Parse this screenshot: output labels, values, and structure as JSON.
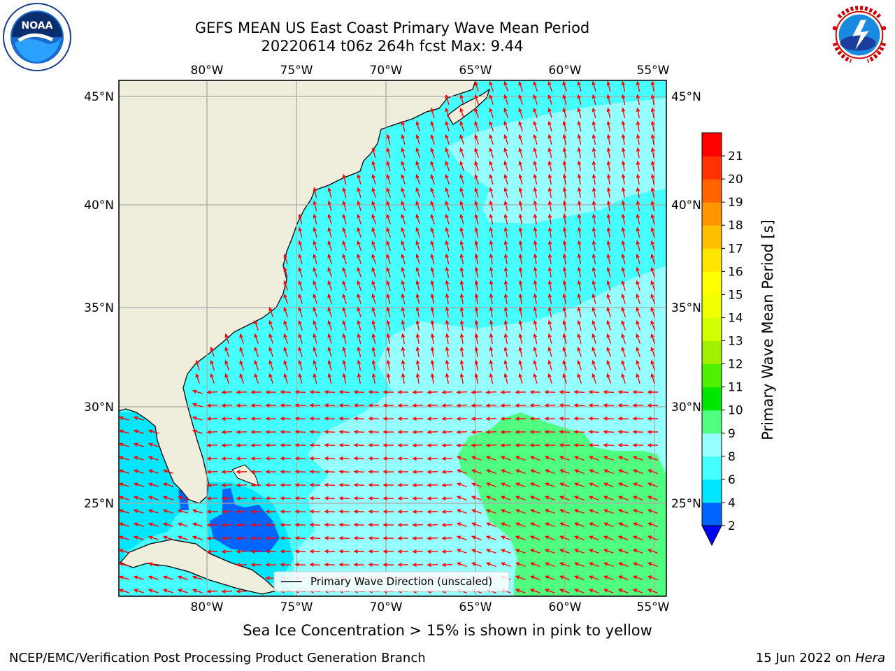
{
  "title_line1": "GEFS MEAN US East Coast Primary Wave Mean Period",
  "title_line2": "20220614 t06z 264h fcst   Max: 9.44",
  "logos": {
    "left": {
      "name": "NOAA",
      "text": "NOAA",
      "ring_text": "NATIONAL OCEANIC AND ATMOSPHERIC ADMINISTRATION · U.S. DEPARTMENT OF COMMERCE"
    },
    "right": {
      "name": "National Weather Service",
      "ring_text": "NATIONAL WEATHER SERVICE"
    }
  },
  "map": {
    "lon_labels": [
      "80°W",
      "75°W",
      "70°W",
      "65°W",
      "60°W",
      "55°W"
    ],
    "lat_labels": [
      "45°N",
      "40°N",
      "35°N",
      "30°N",
      "25°N"
    ],
    "legend_label": "Primary Wave Direction (unscaled)"
  },
  "colorbar": {
    "label": "Primary Wave Mean Period [s]",
    "ticks": [
      "2",
      "4",
      "6",
      "8",
      "9",
      "10",
      "11",
      "12",
      "13",
      "14",
      "15",
      "16",
      "17",
      "18",
      "19",
      "20",
      "21"
    ],
    "colors": [
      "#0064ff",
      "#00e6ff",
      "#46ffff",
      "#96ffff",
      "#50ff82",
      "#00e600",
      "#50f000",
      "#a0f000",
      "#d2ff00",
      "#f0ff00",
      "#ffff00",
      "#ffe600",
      "#ffbe00",
      "#ff9600",
      "#ff6400",
      "#ff3200",
      "#ff0000"
    ],
    "extend_color": "#0000ff"
  },
  "colors": {
    "land": "#efeddc",
    "coast": "#000000",
    "grid": "#a9a9a9",
    "arrow": "#ff0000",
    "wave_4_6": "#00e6ff",
    "wave_6_8": "#46ffff",
    "wave_8_9": "#96ffff",
    "wave_9_10": "#50ff82",
    "wave_2_4": "#0064ff"
  },
  "sea_ice_note": "Sea Ice Concentration > 15% is shown in pink to yellow",
  "footer_left": "NCEP/EMC/Verification Post Processing Product Generation Branch",
  "footer_right_date": "15 Jun 2022 on ",
  "footer_right_machine": "Hera"
}
